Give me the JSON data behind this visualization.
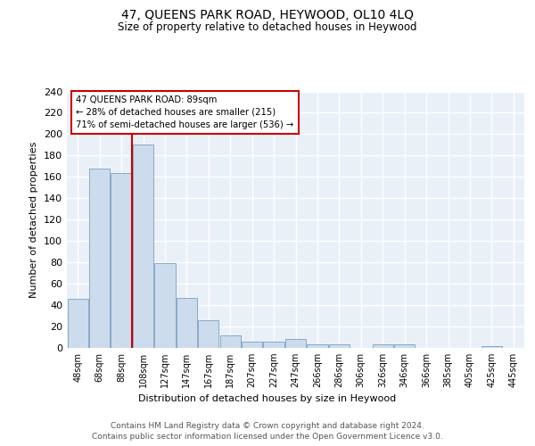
{
  "title": "47, QUEENS PARK ROAD, HEYWOOD, OL10 4LQ",
  "subtitle": "Size of property relative to detached houses in Heywood",
  "xlabel": "Distribution of detached houses by size in Heywood",
  "ylabel": "Number of detached properties",
  "bar_labels": [
    "48sqm",
    "68sqm",
    "88sqm",
    "108sqm",
    "127sqm",
    "147sqm",
    "167sqm",
    "187sqm",
    "207sqm",
    "227sqm",
    "247sqm",
    "266sqm",
    "286sqm",
    "306sqm",
    "326sqm",
    "346sqm",
    "366sqm",
    "385sqm",
    "405sqm",
    "425sqm",
    "445sqm"
  ],
  "bar_values": [
    46,
    168,
    164,
    190,
    79,
    47,
    26,
    12,
    6,
    6,
    8,
    3,
    3,
    0,
    3,
    3,
    0,
    0,
    0,
    2,
    0
  ],
  "bar_color": "#ccdcec",
  "bar_edgecolor": "#88aac8",
  "red_line_color": "#cc0000",
  "property_line_label": "47 QUEENS PARK ROAD: 89sqm",
  "annotation_line1": "← 28% of detached houses are smaller (215)",
  "annotation_line2": "71% of semi-detached houses are larger (536) →",
  "annotation_box_edgecolor": "#cc0000",
  "ylim": [
    0,
    240
  ],
  "yticks": [
    0,
    20,
    40,
    60,
    80,
    100,
    120,
    140,
    160,
    180,
    200,
    220,
    240
  ],
  "footer_line1": "Contains HM Land Registry data © Crown copyright and database right 2024.",
  "footer_line2": "Contains public sector information licensed under the Open Government Licence v3.0.",
  "plot_bg_color": "#eaf0f8"
}
